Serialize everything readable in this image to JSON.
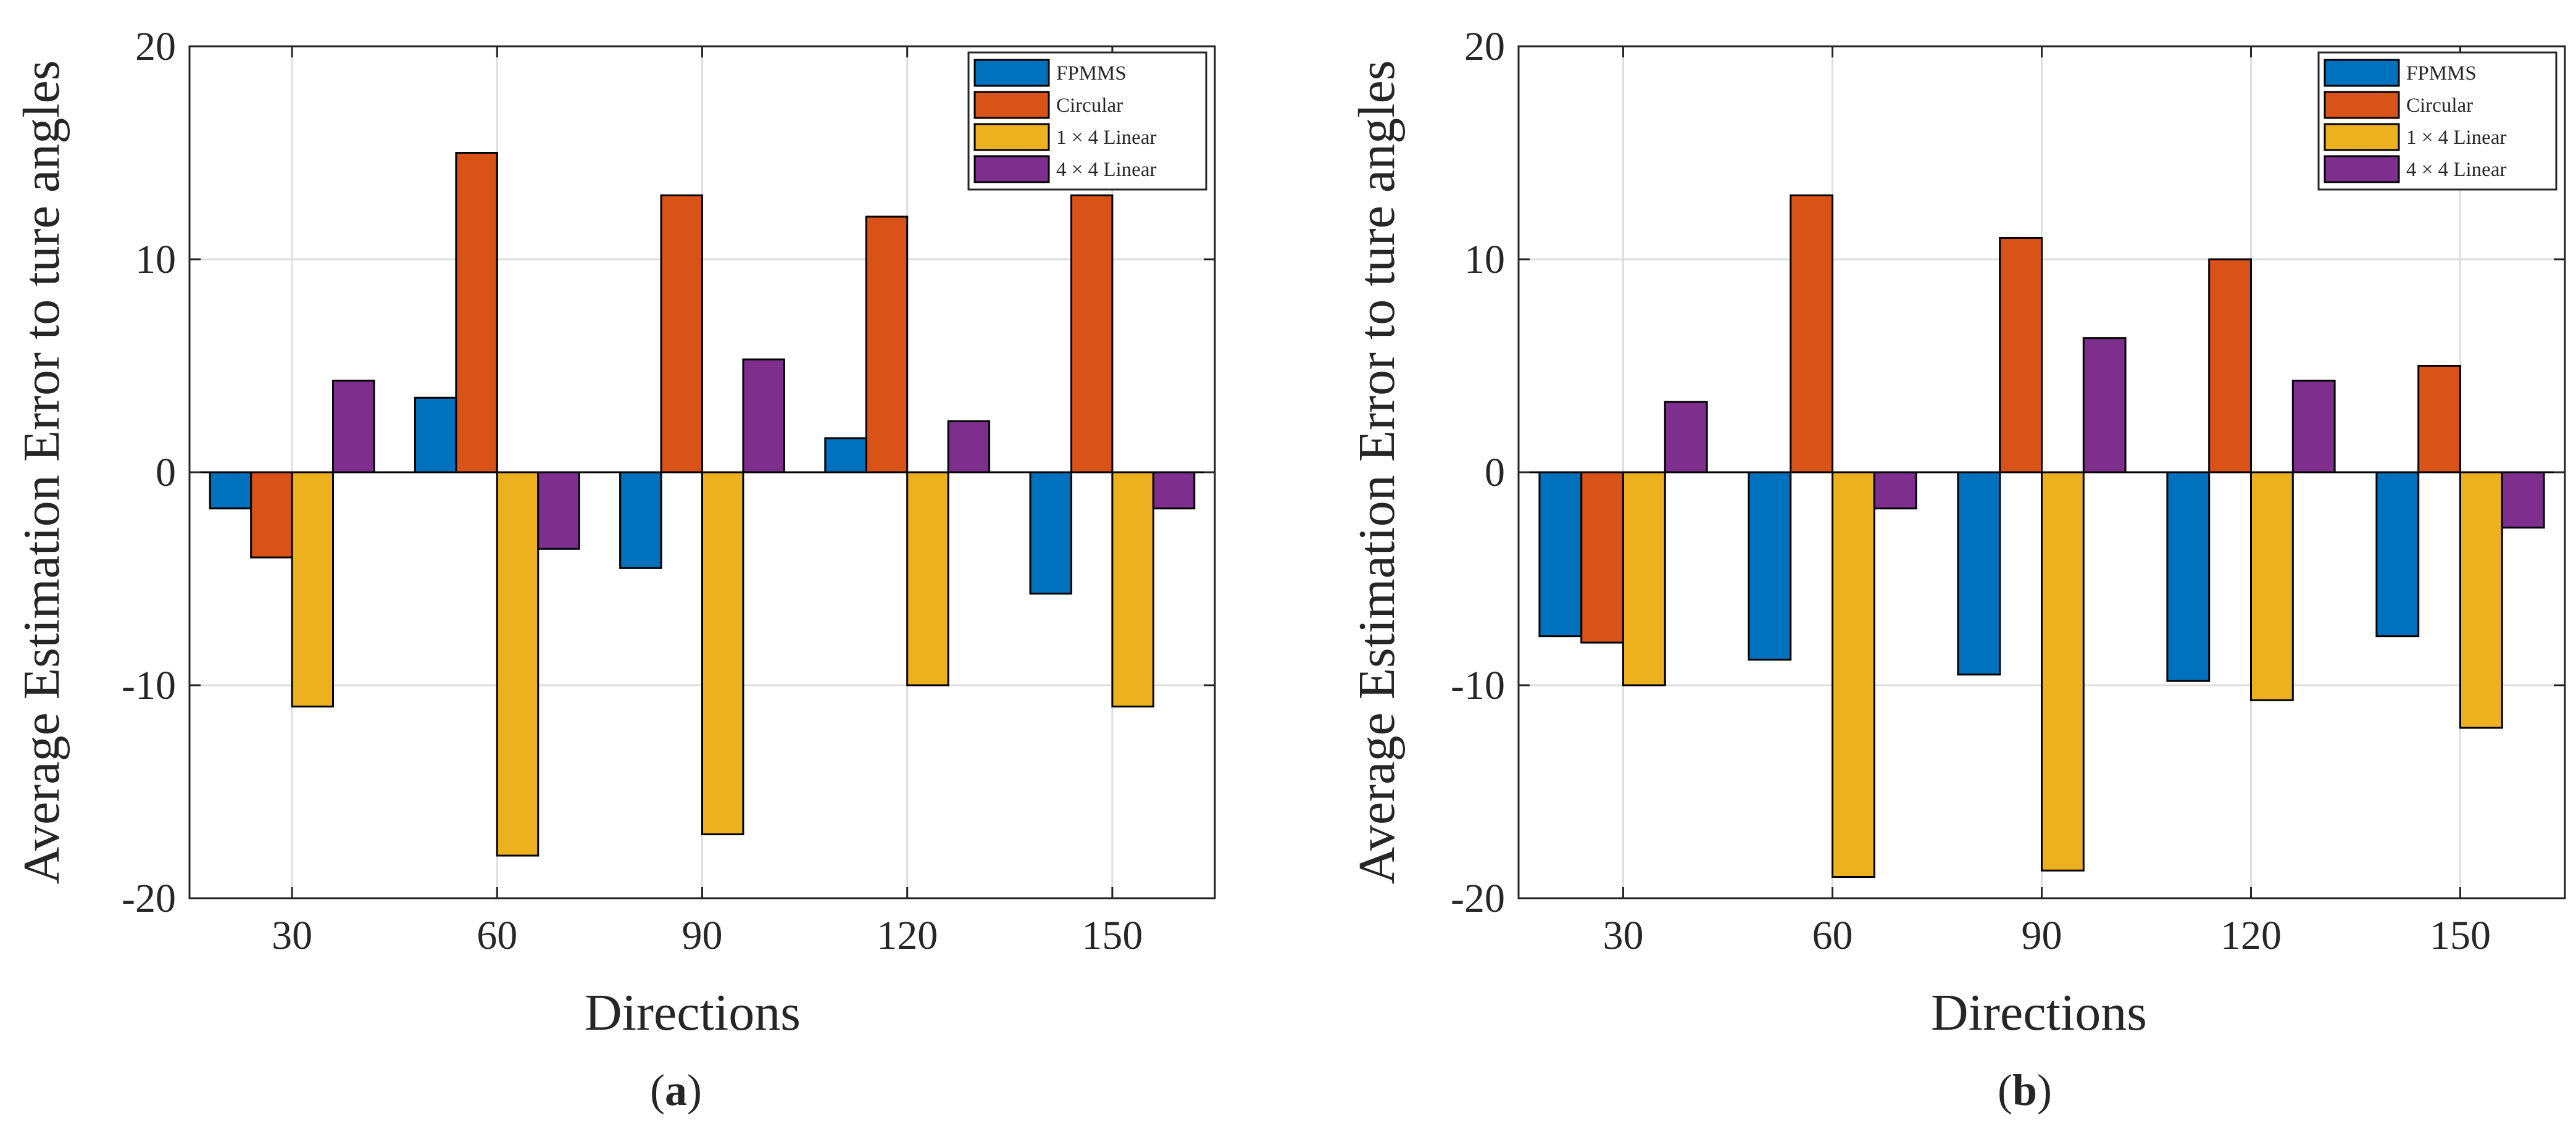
{
  "chart_data": [
    {
      "type": "bar",
      "panel_label": "a",
      "title": "",
      "xlabel": "Directions",
      "ylabel": "Average Estimation Error to ture angles",
      "categories": [
        "30",
        "60",
        "90",
        "120",
        "150"
      ],
      "ylim": [
        -20,
        20
      ],
      "yticks": [
        -20,
        -10,
        0,
        10,
        20
      ],
      "grid": true,
      "legend_position": "top-right",
      "series": [
        {
          "name": "FPMMS",
          "color": "#0072BD",
          "values": [
            -1.7,
            3.5,
            -4.5,
            1.6,
            -5.7
          ]
        },
        {
          "name": "Circular",
          "color": "#D95319",
          "values": [
            -4.0,
            15.0,
            13.0,
            12.0,
            13.0
          ]
        },
        {
          "name": "1 × 4 Linear",
          "color": "#EDB120",
          "values": [
            -11.0,
            -18.0,
            -17.0,
            -10.0,
            -11.0
          ]
        },
        {
          "name": "4 × 4 Linear",
          "color": "#7E2F8E",
          "values": [
            4.3,
            -3.6,
            5.3,
            2.4,
            -1.7
          ]
        }
      ]
    },
    {
      "type": "bar",
      "panel_label": "b",
      "title": "",
      "xlabel": "Directions",
      "ylabel": "Average Estimation Error to ture angles",
      "categories": [
        "30",
        "60",
        "90",
        "120",
        "150"
      ],
      "ylim": [
        -20,
        20
      ],
      "yticks": [
        -20,
        -10,
        0,
        10,
        20
      ],
      "grid": true,
      "legend_position": "top-right",
      "series": [
        {
          "name": "FPMMS",
          "color": "#0072BD",
          "values": [
            -7.7,
            -8.8,
            -9.5,
            -9.8,
            -7.7
          ]
        },
        {
          "name": "Circular",
          "color": "#D95319",
          "values": [
            -8.0,
            13.0,
            11.0,
            10.0,
            5.0
          ]
        },
        {
          "name": "1 × 4 Linear",
          "color": "#EDB120",
          "values": [
            -10.0,
            -19.0,
            -18.7,
            -10.7,
            -12.0
          ]
        },
        {
          "name": "4 × 4 Linear",
          "color": "#7E2F8E",
          "values": [
            3.3,
            -1.7,
            6.3,
            4.3,
            -2.6
          ]
        }
      ]
    }
  ]
}
